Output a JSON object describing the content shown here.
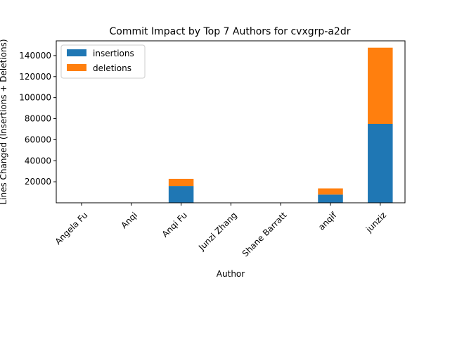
{
  "chart_data": {
    "type": "bar",
    "stacked": true,
    "title": "Commit Impact by Top 7 Authors for cvxgrp-a2dr",
    "xlabel": "Author",
    "ylabel": "Lines Changed (Insertions + Deletions)",
    "categories": [
      "Angela Fu",
      "Anqi",
      "Anqi Fu",
      "Junzi Zhang",
      "Shane Barratt",
      "anqif",
      "junziz"
    ],
    "series": [
      {
        "name": "insertions",
        "color": "#1f77b4",
        "values": [
          20,
          30,
          16000,
          15,
          25,
          7800,
          75000
        ]
      },
      {
        "name": "deletions",
        "color": "#ff7f0e",
        "values": [
          10,
          20,
          6800,
          10,
          15,
          5900,
          72500
        ]
      }
    ],
    "ylim": [
      0,
      154000
    ],
    "yticks": [
      20000,
      40000,
      60000,
      80000,
      100000,
      120000,
      140000
    ],
    "ytick_labels": [
      "20000",
      "40000",
      "60000",
      "80000",
      "100000",
      "120000",
      "140000"
    ],
    "grid": false,
    "legend_position": "top-left"
  }
}
